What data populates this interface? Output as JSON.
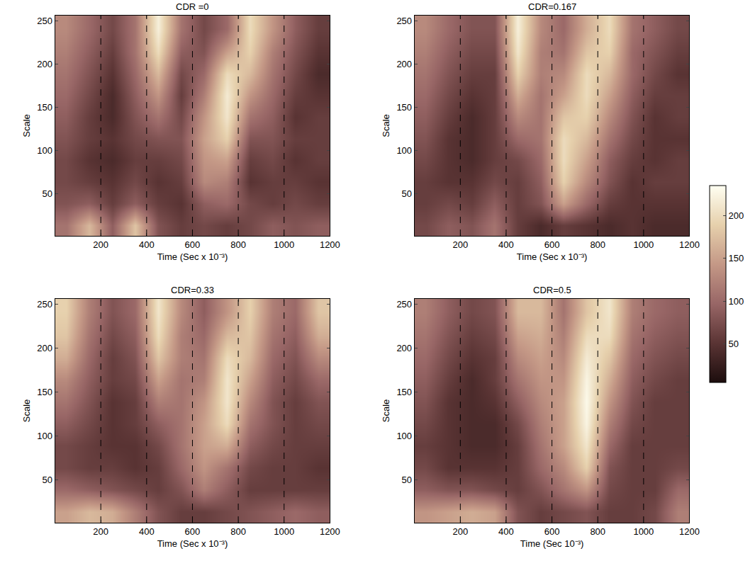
{
  "chart_data": {
    "type": "heatmap",
    "x": [
      0,
      100,
      200,
      300,
      400,
      500,
      600,
      700,
      800,
      900,
      1000,
      1100,
      1200
    ],
    "y": [
      1,
      26,
      51,
      76,
      101,
      126,
      151,
      176,
      201,
      226,
      256
    ],
    "xlim": [
      0,
      1200
    ],
    "xticks": [
      200,
      400,
      600,
      800,
      1000,
      1200
    ],
    "ylim": [
      1,
      256
    ],
    "yticks": [
      50,
      100,
      150,
      200,
      250
    ],
    "zlim": [
      5,
      235
    ],
    "zticks": [
      50,
      100,
      150,
      200
    ],
    "vlines": [
      200,
      400,
      600,
      800,
      1000
    ],
    "panels": [
      {
        "title": "CDR =0",
        "xlabel": "Time (Sec x 10⁻³)",
        "ylabel": "Scale",
        "cells": [
          [
            110,
            170,
            90,
            180,
            80,
            60,
            70,
            60,
            70,
            90,
            80,
            90
          ],
          [
            80,
            90,
            60,
            90,
            60,
            50,
            90,
            100,
            70,
            60,
            70,
            60
          ],
          [
            70,
            60,
            50,
            70,
            50,
            60,
            130,
            120,
            50,
            60,
            60,
            50
          ],
          [
            70,
            50,
            40,
            60,
            60,
            70,
            140,
            150,
            60,
            70,
            50,
            60
          ],
          [
            80,
            60,
            50,
            70,
            80,
            80,
            150,
            190,
            80,
            80,
            60,
            60
          ],
          [
            90,
            60,
            40,
            80,
            110,
            70,
            140,
            210,
            110,
            90,
            50,
            60
          ],
          [
            100,
            70,
            40,
            90,
            140,
            60,
            120,
            215,
            140,
            100,
            60,
            50
          ],
          [
            110,
            80,
            50,
            100,
            170,
            70,
            100,
            200,
            170,
            110,
            70,
            40
          ],
          [
            120,
            90,
            60,
            110,
            200,
            90,
            80,
            150,
            190,
            120,
            80,
            50
          ],
          [
            130,
            100,
            70,
            110,
            220,
            110,
            70,
            100,
            200,
            140,
            90,
            60
          ]
        ]
      },
      {
        "title": "CDR=0.167",
        "xlabel": "Time (Sec x 10⁻³)",
        "ylabel": "Scale",
        "cells": [
          [
            70,
            90,
            80,
            110,
            60,
            40,
            60,
            50,
            40,
            50,
            40,
            40
          ],
          [
            60,
            70,
            60,
            90,
            60,
            80,
            150,
            100,
            60,
            50,
            50,
            50
          ],
          [
            60,
            50,
            50,
            70,
            60,
            90,
            190,
            130,
            80,
            50,
            60,
            60
          ],
          [
            70,
            50,
            40,
            60,
            70,
            100,
            200,
            150,
            90,
            60,
            50,
            60
          ],
          [
            80,
            50,
            40,
            60,
            100,
            110,
            200,
            170,
            110,
            70,
            50,
            50
          ],
          [
            90,
            60,
            40,
            60,
            130,
            110,
            180,
            190,
            130,
            80,
            50,
            60
          ],
          [
            100,
            70,
            50,
            60,
            160,
            110,
            150,
            200,
            150,
            90,
            60,
            60
          ],
          [
            110,
            80,
            60,
            60,
            190,
            120,
            130,
            200,
            170,
            100,
            70,
            50
          ],
          [
            120,
            90,
            70,
            70,
            210,
            120,
            110,
            180,
            190,
            100,
            80,
            60
          ],
          [
            130,
            100,
            80,
            80,
            220,
            130,
            100,
            160,
            200,
            110,
            90,
            70
          ]
        ]
      },
      {
        "title": "CDR=0.33",
        "xlabel": "Time (Sec x 10⁻³)",
        "ylabel": "Scale",
        "cells": [
          [
            150,
            170,
            160,
            120,
            80,
            60,
            60,
            70,
            80,
            90,
            100,
            90
          ],
          [
            100,
            90,
            80,
            70,
            60,
            80,
            120,
            90,
            60,
            60,
            60,
            60
          ],
          [
            70,
            60,
            60,
            50,
            60,
            100,
            140,
            110,
            70,
            60,
            60,
            50
          ],
          [
            70,
            60,
            50,
            50,
            70,
            110,
            150,
            160,
            90,
            70,
            60,
            60
          ],
          [
            90,
            70,
            50,
            60,
            90,
            110,
            150,
            200,
            110,
            80,
            60,
            70
          ],
          [
            110,
            80,
            50,
            60,
            120,
            110,
            140,
            210,
            130,
            80,
            60,
            80
          ],
          [
            130,
            90,
            60,
            70,
            150,
            110,
            120,
            210,
            150,
            90,
            70,
            100
          ],
          [
            160,
            100,
            60,
            80,
            180,
            120,
            110,
            200,
            170,
            100,
            80,
            130
          ],
          [
            180,
            110,
            70,
            90,
            200,
            120,
            100,
            170,
            180,
            110,
            90,
            160
          ],
          [
            190,
            120,
            80,
            100,
            210,
            130,
            90,
            140,
            190,
            120,
            100,
            180
          ]
        ]
      },
      {
        "title": "CDR=0.5",
        "xlabel": "Time (Sec 10⁻³)",
        "ylabel": "Scale",
        "cells": [
          [
            140,
            150,
            160,
            150,
            80,
            60,
            70,
            80,
            60,
            60,
            70,
            120
          ],
          [
            90,
            80,
            80,
            70,
            60,
            80,
            110,
            140,
            70,
            60,
            60,
            100
          ],
          [
            70,
            50,
            50,
            50,
            60,
            100,
            130,
            190,
            80,
            60,
            60,
            70
          ],
          [
            60,
            50,
            40,
            40,
            60,
            110,
            150,
            210,
            100,
            60,
            60,
            60
          ],
          [
            70,
            50,
            40,
            40,
            70,
            120,
            150,
            225,
            120,
            70,
            60,
            60
          ],
          [
            80,
            50,
            40,
            50,
            90,
            130,
            150,
            230,
            140,
            80,
            60,
            60
          ],
          [
            90,
            60,
            40,
            60,
            110,
            140,
            140,
            225,
            160,
            90,
            70,
            60
          ],
          [
            100,
            70,
            50,
            60,
            130,
            150,
            130,
            215,
            180,
            100,
            80,
            70
          ],
          [
            110,
            80,
            60,
            70,
            150,
            160,
            120,
            200,
            200,
            110,
            90,
            80
          ],
          [
            120,
            90,
            70,
            80,
            170,
            170,
            110,
            180,
            210,
            120,
            100,
            90
          ]
        ]
      }
    ]
  }
}
